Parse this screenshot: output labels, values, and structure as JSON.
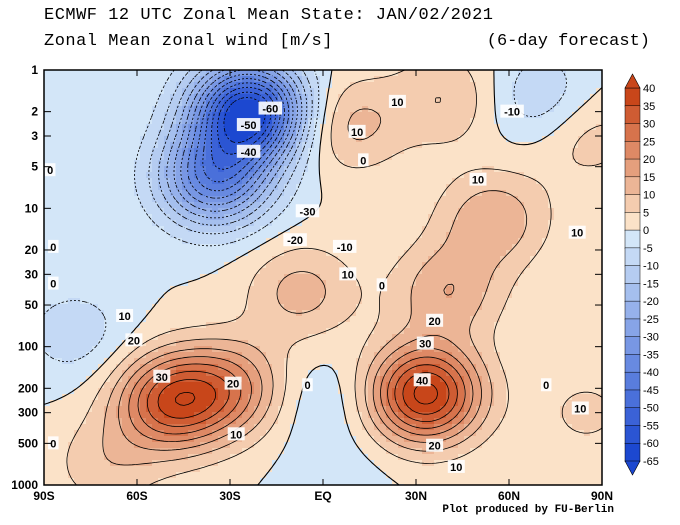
{
  "header": {
    "title": "ECMWF 12 UTC Zonal Mean State: JAN/02/2021",
    "subtitle": "Zonal Mean zonal wind [m/s]",
    "forecast": "(6-day forecast)",
    "credit": "Plot produced by FU-Berlin"
  },
  "chart_data": {
    "type": "heatmap",
    "title": "Zonal Mean zonal wind [m/s]",
    "x_ticks": [
      "90S",
      "60S",
      "30S",
      "EQ",
      "30N",
      "60N",
      "90N"
    ],
    "y_ticks": [
      "1",
      "2",
      "3",
      "5",
      "10",
      "20",
      "30",
      "50",
      "100",
      "200",
      "300",
      "500",
      "1000"
    ],
    "y_scale": "log",
    "y_range_hPa": [
      1000,
      1
    ],
    "x_range_deg": [
      -90,
      90
    ],
    "colorbar_levels": [
      40,
      35,
      30,
      25,
      20,
      15,
      10,
      5,
      0,
      -5,
      -10,
      -15,
      -20,
      -25,
      -30,
      -35,
      -40,
      -45,
      -50,
      -55,
      -60,
      -65
    ],
    "colors": {
      "pos_light": "#fbe2c8",
      "pos_dark": "#c8461a",
      "neg_light": "#d3e6f8",
      "neg_dark": "#1c48d0"
    },
    "features": [
      {
        "lat": -49,
        "p": 250,
        "value": 33
      },
      {
        "lat": -30,
        "p": 200,
        "value": 20
      },
      {
        "lat": -70,
        "p": 700,
        "value": 8
      },
      {
        "lat": -7,
        "p": 40,
        "value": 12
      },
      {
        "lat": 33,
        "p": 220,
        "value": 42
      },
      {
        "lat": 40,
        "p": 40,
        "value": 14
      },
      {
        "lat": 55,
        "p": 12,
        "value": 14
      },
      {
        "lat": 8,
        "p": 2.5,
        "value": 12
      },
      {
        "lat": 40,
        "p": 1.6,
        "value": 10
      },
      {
        "lat": 85,
        "p": 3,
        "value": 8
      },
      {
        "lat": 85,
        "p": 300,
        "value": 6
      },
      {
        "lat": -24,
        "p": 2,
        "value": -64
      },
      {
        "lat": -35,
        "p": 6,
        "value": -40
      },
      {
        "lat": 70,
        "p": 1.6,
        "value": -10
      },
      {
        "lat": 0,
        "p": 250,
        "value": -5
      },
      {
        "lat": 5,
        "p": 1000,
        "value": -3
      },
      {
        "lat": -80,
        "p": 80,
        "value": -8
      }
    ],
    "contour_labels": [
      {
        "text": "-60",
        "lat": -17,
        "p": 1.9
      },
      {
        "text": "-50",
        "lat": -24,
        "p": 2.5
      },
      {
        "text": "-40",
        "lat": -24,
        "p": 3.9
      },
      {
        "text": "-30",
        "lat": -5,
        "p": 10.5
      },
      {
        "text": "-20",
        "lat": -9,
        "p": 17
      },
      {
        "text": "-10",
        "lat": 7,
        "p": 19
      },
      {
        "text": "-10",
        "lat": 61,
        "p": 2.0
      },
      {
        "text": "0",
        "lat": -87,
        "p": 19
      },
      {
        "text": "0",
        "lat": -87,
        "p": 35
      },
      {
        "text": "0",
        "lat": 13,
        "p": 4.5
      },
      {
        "text": "0",
        "lat": -88,
        "p": 5.3
      },
      {
        "text": "0",
        "lat": 19,
        "p": 36
      },
      {
        "text": "0",
        "lat": -5,
        "p": 190
      },
      {
        "text": "0",
        "lat": 72,
        "p": 190
      },
      {
        "text": "0",
        "lat": -87,
        "p": 500
      },
      {
        "text": "10",
        "lat": 24,
        "p": 1.7
      },
      {
        "text": "10",
        "lat": 11,
        "p": 2.8
      },
      {
        "text": "10",
        "lat": 50,
        "p": 6.2
      },
      {
        "text": "10",
        "lat": 82,
        "p": 15
      },
      {
        "text": "10",
        "lat": 8,
        "p": 30
      },
      {
        "text": "10",
        "lat": -64,
        "p": 60
      },
      {
        "text": "10",
        "lat": -28,
        "p": 430
      },
      {
        "text": "10",
        "lat": 43,
        "p": 740
      },
      {
        "text": "10",
        "lat": 83,
        "p": 280
      },
      {
        "text": "20",
        "lat": -61,
        "p": 90
      },
      {
        "text": "20",
        "lat": -29,
        "p": 185
      },
      {
        "text": "20",
        "lat": 36,
        "p": 65
      },
      {
        "text": "20",
        "lat": 36,
        "p": 520
      },
      {
        "text": "30",
        "lat": -52,
        "p": 165
      },
      {
        "text": "30",
        "lat": 33,
        "p": 95
      },
      {
        "text": "40",
        "lat": 32,
        "p": 175
      }
    ]
  }
}
